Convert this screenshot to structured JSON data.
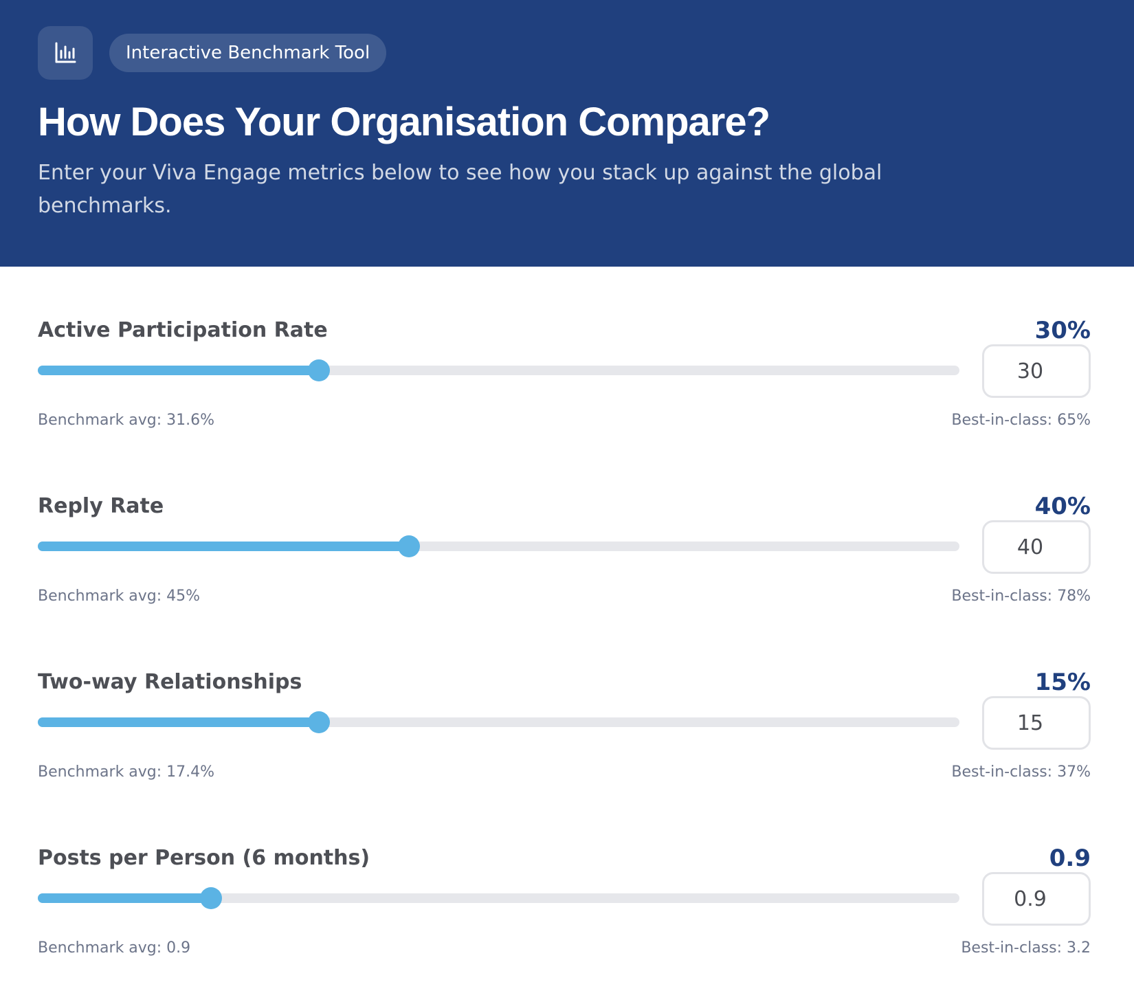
{
  "header": {
    "icon": "bar-chart-icon",
    "badge": "Interactive Benchmark Tool",
    "title": "How Does Your Organisation Compare?",
    "subtitle": "Enter your Viva Engage metrics below to see how you stack up against the global benchmarks."
  },
  "colors": {
    "header_bg": "#20407e",
    "accent": "#5bb3e4",
    "track": "#e6e7eb",
    "value_text": "#20407e"
  },
  "metrics": [
    {
      "label": "Active Participation Rate",
      "display": "30%",
      "input_value": "30",
      "slider_fraction": 0.305,
      "benchmark": "Benchmark avg: 31.6%",
      "best": "Best-in-class: 65%"
    },
    {
      "label": "Reply Rate",
      "display": "40%",
      "input_value": "40",
      "slider_fraction": 0.403,
      "benchmark": "Benchmark avg: 45%",
      "best": "Best-in-class: 78%"
    },
    {
      "label": "Two-way Relationships",
      "display": "15%",
      "input_value": "15",
      "slider_fraction": 0.305,
      "benchmark": "Benchmark avg: 17.4%",
      "best": "Best-in-class: 37%"
    },
    {
      "label": "Posts per Person (6 months)",
      "display": "0.9",
      "input_value": "0.9",
      "slider_fraction": 0.188,
      "benchmark": "Benchmark avg: 0.9",
      "best": "Best-in-class: 3.2"
    }
  ]
}
